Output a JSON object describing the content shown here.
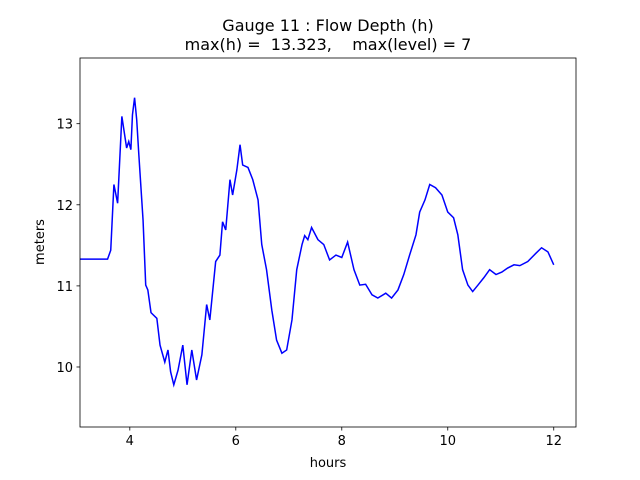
{
  "chart_data": {
    "type": "line",
    "title": [
      "Gauge 11 : Flow Depth (h)",
      "max(h) =  13.323,    max(level) = 7"
    ],
    "xlabel": "hours",
    "ylabel": "meters",
    "color": "#0000ff",
    "xlim": [
      3.06,
      12.42
    ],
    "ylim": [
      9.26,
      13.81
    ],
    "xticks": [
      4,
      6,
      8,
      10,
      12
    ],
    "yticks": [
      10,
      11,
      12,
      13
    ],
    "x": [
      3.06,
      3.58,
      3.64,
      3.7,
      3.77,
      3.85,
      3.94,
      3.98,
      4.02,
      4.05,
      4.09,
      4.13,
      4.17,
      4.25,
      4.3,
      4.34,
      4.4,
      4.51,
      4.57,
      4.66,
      4.72,
      4.77,
      4.83,
      4.91,
      5.0,
      5.08,
      5.17,
      5.26,
      5.36,
      5.45,
      5.51,
      5.62,
      5.7,
      5.75,
      5.81,
      5.89,
      5.94,
      6.02,
      6.08,
      6.13,
      6.23,
      6.32,
      6.42,
      6.49,
      6.58,
      6.68,
      6.77,
      6.87,
      6.96,
      7.06,
      7.15,
      7.25,
      7.3,
      7.36,
      7.43,
      7.55,
      7.66,
      7.77,
      7.89,
      8.0,
      8.11,
      8.23,
      8.34,
      8.45,
      8.57,
      8.68,
      8.83,
      8.94,
      9.06,
      9.17,
      9.28,
      9.4,
      9.47,
      9.57,
      9.66,
      9.77,
      9.89,
      10.0,
      10.11,
      10.19,
      10.28,
      10.38,
      10.47,
      10.57,
      10.68,
      10.79,
      10.91,
      11.02,
      11.13,
      11.25,
      11.36,
      11.51,
      11.66,
      11.77,
      11.89,
      12.0
    ],
    "values": [
      11.33,
      11.33,
      11.44,
      12.25,
      12.02,
      13.09,
      12.7,
      12.78,
      12.68,
      13.11,
      13.32,
      13.05,
      12.62,
      11.81,
      11.01,
      10.95,
      10.67,
      10.6,
      10.27,
      10.06,
      10.21,
      9.94,
      9.78,
      9.96,
      10.27,
      9.78,
      10.21,
      9.84,
      10.15,
      10.77,
      10.58,
      11.3,
      11.38,
      11.79,
      11.69,
      12.31,
      12.12,
      12.43,
      12.74,
      12.49,
      12.46,
      12.31,
      12.06,
      11.51,
      11.2,
      10.7,
      10.33,
      10.17,
      10.21,
      10.58,
      11.2,
      11.51,
      11.62,
      11.57,
      11.72,
      11.57,
      11.51,
      11.32,
      11.38,
      11.35,
      11.54,
      11.2,
      11.01,
      11.02,
      10.89,
      10.85,
      10.91,
      10.85,
      10.95,
      11.14,
      11.38,
      11.63,
      11.91,
      12.06,
      12.25,
      12.21,
      12.12,
      11.91,
      11.84,
      11.63,
      11.2,
      11.01,
      10.93,
      11.01,
      11.1,
      11.2,
      11.14,
      11.17,
      11.22,
      11.26,
      11.25,
      11.3,
      11.4,
      11.47,
      11.42,
      11.26
    ]
  }
}
